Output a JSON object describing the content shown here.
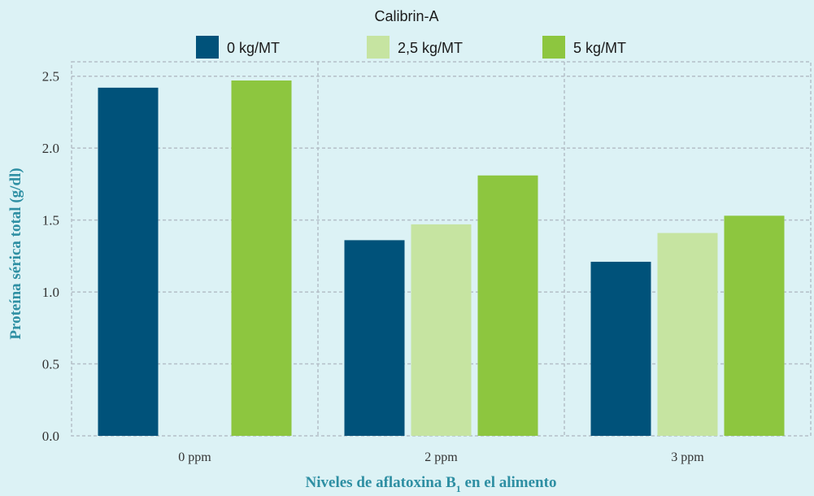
{
  "chart_data": {
    "type": "bar",
    "legend_title": "Calibrin-A",
    "legend_placement": "top-center",
    "categories": [
      "0 ppm",
      "2 ppm",
      "3 ppm"
    ],
    "series": [
      {
        "name": "0 kg/MT",
        "color": "#00527a",
        "values": [
          2.42,
          1.36,
          1.21
        ]
      },
      {
        "name": "2,5 kg/MT",
        "color": "#c6e4a1",
        "values": [
          null,
          1.47,
          1.41
        ]
      },
      {
        "name": "5 kg/MT",
        "color": "#8dc63f",
        "values": [
          2.47,
          1.81,
          1.53
        ]
      }
    ],
    "ylim": [
      0,
      2.6
    ],
    "yticks": [
      "0.0",
      "0.5",
      "1.0",
      "1.5",
      "2.0",
      "2.5"
    ],
    "ylabel": "Proteína sérica total (g/dl)",
    "xlabel_main": "Niveles de aflatoxina B",
    "xlabel_sub": "1",
    "xlabel_rest": " en el alimento",
    "grid": true
  }
}
